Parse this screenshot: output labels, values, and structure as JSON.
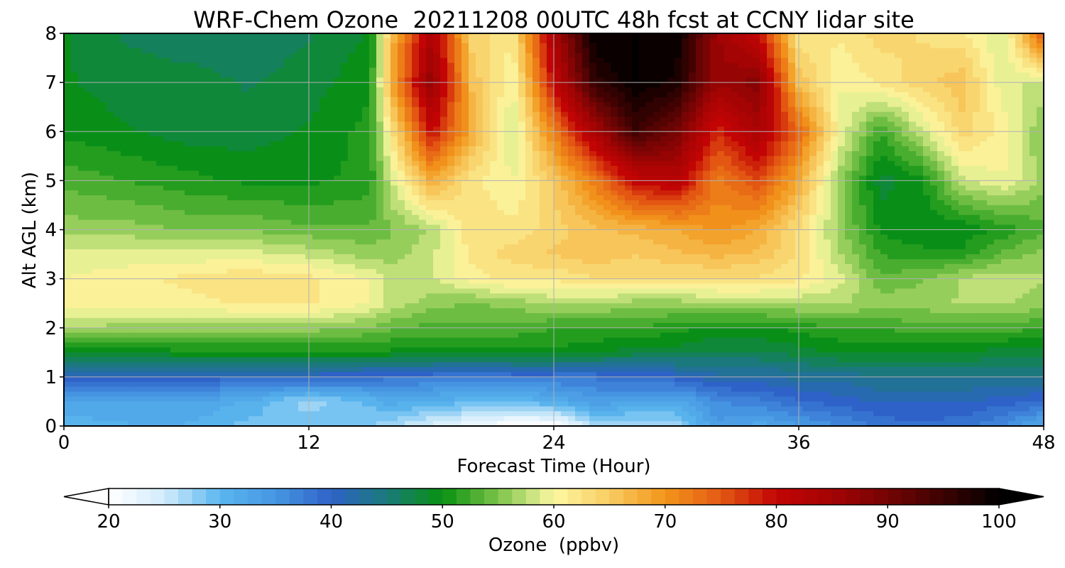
{
  "chart_data": {
    "type": "heatmap",
    "title": "WRF-Chem Ozone  20211208 00UTC 48h fcst at CCNY lidar site",
    "xlabel": "Forecast Time (Hour)",
    "ylabel": "Alt AGL (km)",
    "xlim": [
      0,
      48
    ],
    "ylim": [
      0,
      8
    ],
    "xticks": [
      0,
      12,
      24,
      36,
      48
    ],
    "yticks": [
      0,
      1,
      2,
      3,
      4,
      5,
      6,
      7,
      8
    ],
    "grid": true,
    "x": [
      0,
      3,
      6,
      9,
      12,
      15,
      16,
      18,
      20,
      22,
      24,
      26,
      28,
      30,
      32,
      34,
      36,
      38,
      40,
      42,
      44,
      46,
      48
    ],
    "y": [
      0,
      0.5,
      1,
      1.5,
      2,
      2.5,
      3,
      3.5,
      4,
      5,
      6,
      7,
      8
    ],
    "values": [
      [
        30,
        31,
        31,
        29,
        29,
        28,
        27,
        24,
        22,
        20,
        20,
        26,
        26,
        27,
        34,
        32,
        34,
        36,
        38,
        39,
        38,
        36,
        32
      ],
      [
        33,
        33,
        33,
        31,
        27,
        30,
        32,
        31,
        30,
        30,
        31,
        34,
        33,
        32,
        36,
        37,
        39,
        40,
        41,
        41,
        41,
        40,
        39
      ],
      [
        40,
        40,
        40,
        40,
        40,
        39,
        38,
        38,
        37,
        38,
        38,
        38,
        39,
        40,
        42,
        42,
        43,
        43,
        44,
        44,
        44,
        44,
        44
      ],
      [
        49,
        49,
        50,
        50,
        50,
        50,
        50,
        50,
        50,
        50,
        50,
        49,
        48,
        48,
        47,
        47,
        48,
        49,
        49,
        49,
        49,
        48,
        48
      ],
      [
        57,
        56,
        56,
        56,
        56,
        55,
        54,
        53,
        53,
        53,
        52,
        52,
        52,
        51,
        50,
        50,
        51,
        52,
        52,
        53,
        53,
        53,
        52
      ],
      [
        61,
        61,
        61,
        62,
        62,
        60,
        58,
        56,
        55,
        56,
        57,
        57,
        56,
        56,
        57,
        57,
        57,
        57,
        56,
        56,
        57,
        57,
        56
      ],
      [
        60,
        61,
        62,
        63,
        62,
        60,
        58,
        58,
        61,
        62,
        62,
        63,
        63,
        63,
        63,
        63,
        62,
        59,
        54,
        55,
        57,
        58,
        57
      ],
      [
        59,
        59,
        59,
        59,
        58,
        56,
        56,
        58,
        62,
        64,
        65,
        66,
        65,
        66,
        67,
        66,
        63,
        57,
        52,
        51,
        51,
        54,
        56
      ],
      [
        56,
        56,
        55,
        55,
        54,
        54,
        55,
        57,
        63,
        62,
        64,
        66,
        67,
        68,
        70,
        68,
        63,
        56,
        50,
        49,
        49,
        51,
        53
      ],
      [
        53,
        52,
        51,
        50,
        50,
        51,
        58,
        68,
        62,
        60,
        65,
        72,
        80,
        82,
        72,
        76,
        68,
        56,
        48,
        50,
        58,
        60,
        56
      ],
      [
        50,
        49,
        48,
        48,
        49,
        51,
        62,
        80,
        68,
        58,
        72,
        84,
        95,
        90,
        78,
        84,
        74,
        60,
        52,
        58,
        64,
        61,
        55
      ],
      [
        49,
        48,
        48,
        47,
        48,
        50,
        68,
        87,
        66,
        60,
        80,
        96,
        100,
        98,
        86,
        88,
        66,
        60,
        62,
        64,
        66,
        59,
        58
      ],
      [
        49,
        47,
        46,
        46,
        47,
        49,
        66,
        84,
        64,
        62,
        84,
        100,
        100,
        100,
        86,
        80,
        62,
        62,
        64,
        63,
        62,
        58,
        76
      ]
    ],
    "colorbar": {
      "label": "Ozone  (ppbv)",
      "min": 20,
      "max": 100,
      "ticks": [
        20,
        30,
        40,
        50,
        60,
        70,
        80,
        90,
        100
      ],
      "extend": "both",
      "stops": [
        {
          "v": 20,
          "color": "#ffffff"
        },
        {
          "v": 25,
          "color": "#d2ecfb"
        },
        {
          "v": 30,
          "color": "#5ab6ee"
        },
        {
          "v": 35,
          "color": "#4696e2"
        },
        {
          "v": 40,
          "color": "#2f62c8"
        },
        {
          "v": 45,
          "color": "#1a7a7a"
        },
        {
          "v": 50,
          "color": "#089110"
        },
        {
          "v": 55,
          "color": "#7cc34a"
        },
        {
          "v": 60,
          "color": "#fcf8a2"
        },
        {
          "v": 65,
          "color": "#f8cc62"
        },
        {
          "v": 70,
          "color": "#f2951a"
        },
        {
          "v": 75,
          "color": "#e45a14"
        },
        {
          "v": 80,
          "color": "#c20404"
        },
        {
          "v": 85,
          "color": "#a40404"
        },
        {
          "v": 90,
          "color": "#740404"
        },
        {
          "v": 95,
          "color": "#3c0202"
        },
        {
          "v": 100,
          "color": "#000000"
        }
      ]
    }
  }
}
